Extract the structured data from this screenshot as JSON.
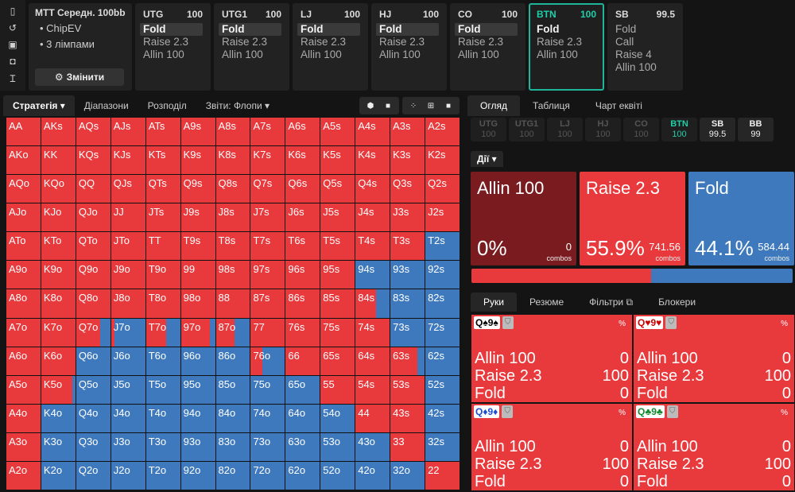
{
  "toolbar": {
    "icons": [
      "bookmark-icon",
      "history-icon",
      "save-icon",
      "gamepad-icon",
      "text-format-icon"
    ]
  },
  "info": {
    "title": "MTT  Середн. 100bb",
    "lines": [
      "ChipEV",
      "3 лімпами"
    ],
    "change_label": "Змінити"
  },
  "positions": [
    {
      "name": "UTG",
      "stack": "100",
      "actions": [
        "Fold",
        "Raise 2.3",
        "Allin 100"
      ],
      "selected": 0
    },
    {
      "name": "UTG1",
      "stack": "100",
      "actions": [
        "Fold",
        "Raise 2.3",
        "Allin 100"
      ],
      "selected": 0
    },
    {
      "name": "LJ",
      "stack": "100",
      "actions": [
        "Fold",
        "Raise 2.3",
        "Allin 100"
      ],
      "selected": 0
    },
    {
      "name": "HJ",
      "stack": "100",
      "actions": [
        "Fold",
        "Raise 2.3",
        "Allin 100"
      ],
      "selected": 0
    },
    {
      "name": "CO",
      "stack": "100",
      "actions": [
        "Fold",
        "Raise 2.3",
        "Allin 100"
      ],
      "selected": 0
    },
    {
      "name": "BTN",
      "stack": "100",
      "actions": [
        "Fold",
        "Raise 2.3",
        "Allin 100"
      ],
      "selected": 0,
      "active": true
    },
    {
      "name": "SB",
      "stack": "99.5",
      "actions": [
        "Fold",
        "Call",
        "Raise 4",
        "Allin 100"
      ],
      "selected": -1
    }
  ],
  "strategy_tabs": [
    "Стратегія",
    "Діапазони",
    "Розподіл",
    "Звіти: Флопи"
  ],
  "grid": {
    "rows": [
      [
        "AA",
        "AKs",
        "AQs",
        "AJs",
        "ATs",
        "A9s",
        "A8s",
        "A7s",
        "A6s",
        "A5s",
        "A4s",
        "A3s",
        "A2s"
      ],
      [
        "AKo",
        "KK",
        "KQs",
        "KJs",
        "KTs",
        "K9s",
        "K8s",
        "K7s",
        "K6s",
        "K5s",
        "K4s",
        "K3s",
        "K2s"
      ],
      [
        "AQo",
        "KQo",
        "QQ",
        "QJs",
        "QTs",
        "Q9s",
        "Q8s",
        "Q7s",
        "Q6s",
        "Q5s",
        "Q4s",
        "Q3s",
        "Q2s"
      ],
      [
        "AJo",
        "KJo",
        "QJo",
        "JJ",
        "JTs",
        "J9s",
        "J8s",
        "J7s",
        "J6s",
        "J5s",
        "J4s",
        "J3s",
        "J2s"
      ],
      [
        "ATo",
        "KTo",
        "QTo",
        "JTo",
        "TT",
        "T9s",
        "T8s",
        "T7s",
        "T6s",
        "T5s",
        "T4s",
        "T3s",
        "T2s"
      ],
      [
        "A9o",
        "K9o",
        "Q9o",
        "J9o",
        "T9o",
        "99",
        "98s",
        "97s",
        "96s",
        "95s",
        "94s",
        "93s",
        "92s"
      ],
      [
        "A8o",
        "K8o",
        "Q8o",
        "J8o",
        "T8o",
        "98o",
        "88",
        "87s",
        "86s",
        "85s",
        "84s",
        "83s",
        "82s"
      ],
      [
        "A7o",
        "K7o",
        "Q7o",
        "J7o",
        "T7o",
        "97o",
        "87o",
        "77",
        "76s",
        "75s",
        "74s",
        "73s",
        "72s"
      ],
      [
        "A6o",
        "K6o",
        "Q6o",
        "J6o",
        "T6o",
        "96o",
        "86o",
        "76o",
        "66",
        "65s",
        "64s",
        "63s",
        "62s"
      ],
      [
        "A5o",
        "K5o",
        "Q5o",
        "J5o",
        "T5o",
        "95o",
        "85o",
        "75o",
        "65o",
        "55",
        "54s",
        "53s",
        "52s"
      ],
      [
        "A4o",
        "K4o",
        "Q4o",
        "J4o",
        "T4o",
        "94o",
        "84o",
        "74o",
        "64o",
        "54o",
        "44",
        "43s",
        "42s"
      ],
      [
        "A3o",
        "K3o",
        "Q3o",
        "J3o",
        "T3o",
        "93o",
        "83o",
        "73o",
        "63o",
        "53o",
        "43o",
        "33",
        "32s"
      ],
      [
        "A2o",
        "K2o",
        "Q2o",
        "J2o",
        "T2o",
        "92o",
        "82o",
        "72o",
        "62o",
        "52o",
        "42o",
        "32o",
        "22"
      ]
    ],
    "raise_freq": [
      [
        1,
        1,
        1,
        1,
        1,
        1,
        1,
        1,
        1,
        1,
        1,
        1,
        1
      ],
      [
        1,
        1,
        1,
        1,
        1,
        1,
        1,
        1,
        1,
        1,
        1,
        1,
        1
      ],
      [
        1,
        1,
        1,
        1,
        1,
        1,
        1,
        1,
        1,
        1,
        1,
        1,
        1
      ],
      [
        1,
        1,
        1,
        1,
        1,
        1,
        1,
        1,
        1,
        1,
        1,
        1,
        1
      ],
      [
        1,
        1,
        1,
        1,
        1,
        1,
        1,
        1,
        1,
        1,
        1,
        1,
        0
      ],
      [
        1,
        1,
        1,
        1,
        1,
        1,
        1,
        1,
        1,
        1,
        0,
        0,
        0
      ],
      [
        1,
        1,
        1,
        1,
        1,
        1,
        1,
        1,
        1,
        1,
        0.6,
        0,
        0
      ],
      [
        1,
        1,
        0.7,
        0.1,
        0.6,
        0.85,
        0.55,
        1,
        1,
        1,
        1,
        0,
        0
      ],
      [
        1,
        1,
        0,
        0,
        0,
        0,
        0,
        0.35,
        1,
        1,
        1,
        0.8,
        0
      ],
      [
        1,
        0.9,
        0,
        0,
        0,
        0,
        0,
        0,
        0,
        1,
        1,
        1,
        0
      ],
      [
        1,
        0,
        0,
        0,
        0,
        0,
        0,
        0,
        0,
        0,
        1,
        1,
        0
      ],
      [
        1,
        0,
        0,
        0,
        0,
        0,
        0,
        0,
        0,
        0,
        0,
        1,
        0
      ],
      [
        1,
        0,
        0,
        0,
        0,
        0,
        0,
        0,
        0,
        0,
        0,
        0,
        1
      ]
    ]
  },
  "right_tabs": [
    "Огляд",
    "Таблиця",
    "Чарт еквіті"
  ],
  "seats": [
    {
      "name": "UTG",
      "stack": "100",
      "style": "dim"
    },
    {
      "name": "UTG1",
      "stack": "100",
      "style": "dim"
    },
    {
      "name": "LJ",
      "stack": "100",
      "style": "dim"
    },
    {
      "name": "HJ",
      "stack": "100",
      "style": "dim"
    },
    {
      "name": "CO",
      "stack": "100",
      "style": "dim"
    },
    {
      "name": "BTN",
      "stack": "100",
      "style": "act"
    },
    {
      "name": "SB",
      "stack": "99.5",
      "style": "bright"
    },
    {
      "name": "BB",
      "stack": "99",
      "style": "bright"
    }
  ],
  "actions_tab": "Дії",
  "action_boxes": [
    {
      "name": "Allin 100",
      "pct": "0%",
      "combos": "0",
      "combos_label": "combos",
      "color": "#7a1c1f",
      "freq": 0
    },
    {
      "name": "Raise 2.3",
      "pct": "55.9%",
      "combos": "741.56",
      "combos_label": "combos",
      "color": "#e8393c",
      "freq": 0.559
    },
    {
      "name": "Fold",
      "pct": "44.1%",
      "combos": "584.44",
      "combos_label": "combos",
      "color": "#3e79bd",
      "freq": 0.441
    }
  ],
  "hand_tabs": [
    "Руки",
    "Резюме",
    "Фільтри",
    "Блокери"
  ],
  "combos": [
    {
      "card1": "Q♠",
      "card2": "9♠",
      "color": "#000000",
      "pct": "%",
      "rows": [
        [
          "Allin 100",
          "0"
        ],
        [
          "Raise 2.3",
          "100"
        ],
        [
          "Fold",
          "0"
        ]
      ]
    },
    {
      "card1": "Q♥",
      "card2": "9♥",
      "color": "#cc0000",
      "pct": "%",
      "rows": [
        [
          "Allin 100",
          "0"
        ],
        [
          "Raise 2.3",
          "100"
        ],
        [
          "Fold",
          "0"
        ]
      ]
    },
    {
      "card1": "Q♦",
      "card2": "9♦",
      "color": "#1a4fd0",
      "pct": "%",
      "rows": [
        [
          "Allin 100",
          "0"
        ],
        [
          "Raise 2.3",
          "100"
        ],
        [
          "Fold",
          "0"
        ]
      ]
    },
    {
      "card1": "Q♣",
      "card2": "9♣",
      "color": "#138a2e",
      "pct": "%",
      "rows": [
        [
          "Allin 100",
          "0"
        ],
        [
          "Raise 2.3",
          "100"
        ],
        [
          "Fold",
          "0"
        ]
      ]
    }
  ]
}
